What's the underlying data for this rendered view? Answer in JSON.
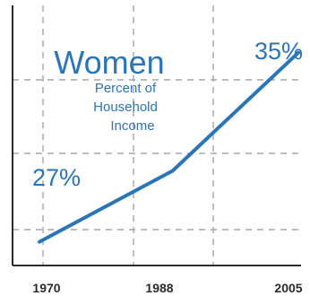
{
  "chart_data": {
    "type": "line",
    "title": "Women",
    "subtitle_lines": [
      "Percent of",
      "Household",
      "Income"
    ],
    "x": [
      1970,
      1988,
      2005
    ],
    "x_tick_labels": [
      "1970",
      "1988",
      "2005"
    ],
    "series": [
      {
        "values": [
          27,
          30,
          35
        ]
      }
    ],
    "data_labels": [
      {
        "x": 1970,
        "y": 27,
        "text": "27%"
      },
      {
        "x": 2005,
        "y": 35,
        "text": "35%"
      }
    ],
    "xlim": [
      1966,
      2005
    ],
    "ylim": [
      26,
      37
    ],
    "grid": true,
    "line_color": "#2a74b8"
  }
}
